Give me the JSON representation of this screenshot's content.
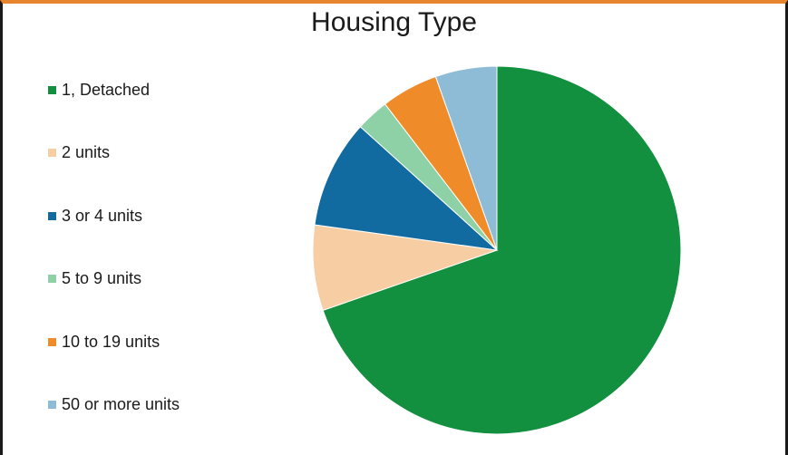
{
  "chart_data": {
    "type": "pie",
    "title": "Housing Type",
    "categories": [
      "1, Detached",
      "2 units",
      "3 or 4 units",
      "5 to 9 units",
      "10 to 19 units",
      "50 or more units"
    ],
    "values": [
      69.7,
      7.5,
      9.5,
      2.9,
      5.0,
      5.4
    ],
    "colors": [
      "#12903f",
      "#f7cea4",
      "#116aa0",
      "#8fd1a6",
      "#f08b2a",
      "#8ebcd6"
    ],
    "legend_position": "left"
  }
}
